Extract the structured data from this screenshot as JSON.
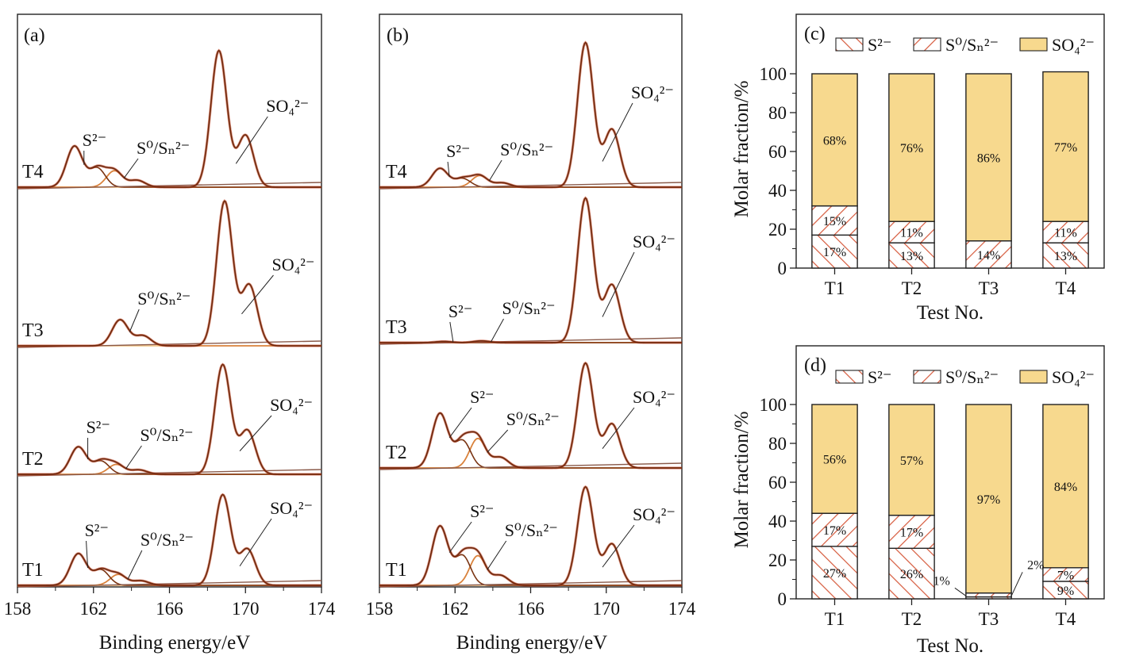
{
  "colors": {
    "envelope": "#6e2b10",
    "raw": "#c0391b",
    "sulfate_fit": "#f3c98c",
    "sulfide_fit": "#7a3412",
    "polysulfide_fit": "#d9823c",
    "baseline": "#8a5a4a",
    "sulfate_fill": "#f7d98e",
    "hatch_line": "#d65a3c",
    "axis": "#222222"
  },
  "chart_data": [
    {
      "id": "a",
      "type": "line",
      "panel_label": "(a)",
      "xlabel": "Binding energy/eV",
      "xlim": [
        158,
        174
      ],
      "x_reversed": false,
      "x_ticks": [
        "158",
        "162",
        "166",
        "170",
        "174"
      ],
      "peak_labels": {
        "sulfide": "S²⁻",
        "polysulfide": "S⁰/Sₙ²⁻",
        "sulfate": "SO₄²⁻"
      },
      "series": [
        {
          "name": "T4",
          "sulfide_peaks": [
            {
              "center": 161.0,
              "height": 0.3
            },
            {
              "center": 162.2,
              "height": 0.14
            }
          ],
          "polysulfide_peaks": [
            {
              "center": 163.1,
              "height": 0.12
            },
            {
              "center": 164.3,
              "height": 0.05
            }
          ],
          "sulfate_peaks": [
            {
              "center": 168.6,
              "height": 1.0
            },
            {
              "center": 170.0,
              "height": 0.38
            }
          ],
          "labels_shown": [
            "sulfide",
            "polysulfide",
            "sulfate"
          ]
        },
        {
          "name": "T3",
          "sulfide_peaks": [],
          "polysulfide_peaks": [
            {
              "center": 163.4,
              "height": 0.18
            },
            {
              "center": 164.6,
              "height": 0.07
            }
          ],
          "sulfate_peaks": [
            {
              "center": 168.9,
              "height": 1.0
            },
            {
              "center": 170.2,
              "height": 0.42
            }
          ],
          "labels_shown": [
            "polysulfide",
            "sulfate"
          ]
        },
        {
          "name": "T2",
          "sulfide_peaks": [
            {
              "center": 161.2,
              "height": 0.25
            },
            {
              "center": 162.4,
              "height": 0.12
            }
          ],
          "polysulfide_peaks": [
            {
              "center": 163.2,
              "height": 0.09
            },
            {
              "center": 164.4,
              "height": 0.04
            }
          ],
          "sulfate_peaks": [
            {
              "center": 168.8,
              "height": 1.0
            },
            {
              "center": 170.1,
              "height": 0.4
            }
          ],
          "labels_shown": [
            "sulfide",
            "polysulfide",
            "sulfate"
          ]
        },
        {
          "name": "T1",
          "sulfide_peaks": [
            {
              "center": 161.2,
              "height": 0.35
            },
            {
              "center": 162.4,
              "height": 0.17
            }
          ],
          "polysulfide_peaks": [
            {
              "center": 163.3,
              "height": 0.12
            },
            {
              "center": 164.5,
              "height": 0.05
            }
          ],
          "sulfate_peaks": [
            {
              "center": 168.8,
              "height": 1.0
            },
            {
              "center": 170.1,
              "height": 0.4
            }
          ],
          "labels_shown": [
            "sulfide",
            "polysulfide",
            "sulfate"
          ]
        }
      ]
    },
    {
      "id": "b",
      "type": "line",
      "panel_label": "(b)",
      "xlabel": "Binding energy/eV",
      "xlim": [
        158,
        174
      ],
      "x_reversed": false,
      "x_ticks": [
        "158",
        "162",
        "166",
        "170",
        "174"
      ],
      "peak_labels": {
        "sulfide": "S²⁻",
        "polysulfide": "S⁰/Sₙ²⁻",
        "sulfate": "SO₄²⁻"
      },
      "series": [
        {
          "name": "T4",
          "sulfide_peaks": [
            {
              "center": 161.2,
              "height": 0.13
            },
            {
              "center": 162.4,
              "height": 0.06
            }
          ],
          "polysulfide_peaks": [
            {
              "center": 163.3,
              "height": 0.08
            },
            {
              "center": 164.5,
              "height": 0.03
            }
          ],
          "sulfate_peaks": [
            {
              "center": 168.9,
              "height": 1.0
            },
            {
              "center": 170.3,
              "height": 0.4
            }
          ],
          "labels_shown": [
            "sulfide",
            "polysulfide",
            "sulfate"
          ]
        },
        {
          "name": "T3",
          "sulfide_peaks": [
            {
              "center": 161.4,
              "height": 0.008
            }
          ],
          "polysulfide_peaks": [
            {
              "center": 163.4,
              "height": 0.012
            }
          ],
          "sulfate_peaks": [
            {
              "center": 168.9,
              "height": 1.0
            },
            {
              "center": 170.3,
              "height": 0.4
            }
          ],
          "labels_shown": [
            "sulfide",
            "polysulfide",
            "sulfate"
          ]
        },
        {
          "name": "T2",
          "sulfide_peaks": [
            {
              "center": 161.2,
              "height": 0.52
            },
            {
              "center": 162.4,
              "height": 0.26
            }
          ],
          "polysulfide_peaks": [
            {
              "center": 163.2,
              "height": 0.28
            },
            {
              "center": 164.4,
              "height": 0.1
            }
          ],
          "sulfate_peaks": [
            {
              "center": 168.9,
              "height": 1.0
            },
            {
              "center": 170.3,
              "height": 0.42
            }
          ],
          "labels_shown": [
            "sulfide",
            "polysulfide",
            "sulfate"
          ]
        },
        {
          "name": "T1",
          "sulfide_peaks": [
            {
              "center": 161.2,
              "height": 0.6
            },
            {
              "center": 162.4,
              "height": 0.3
            }
          ],
          "polysulfide_peaks": [
            {
              "center": 163.2,
              "height": 0.3
            },
            {
              "center": 164.4,
              "height": 0.1
            }
          ],
          "sulfate_peaks": [
            {
              "center": 168.9,
              "height": 1.0
            },
            {
              "center": 170.3,
              "height": 0.42
            }
          ],
          "labels_shown": [
            "sulfide",
            "polysulfide",
            "sulfate"
          ]
        }
      ]
    },
    {
      "id": "c",
      "type": "bar",
      "stacked": true,
      "panel_label": "(c)",
      "xlabel": "Test No.",
      "ylabel": "Molar fraction/%",
      "ylim": [
        0,
        100
      ],
      "y_ticks": [
        0,
        20,
        40,
        60,
        80,
        100
      ],
      "categories": [
        "T1",
        "T2",
        "T3",
        "T4"
      ],
      "legend": {
        "position": "top",
        "entries": [
          "S²⁻",
          "S⁰/Sₙ²⁻",
          "SO₄²⁻"
        ]
      },
      "series": [
        {
          "name": "S²⁻",
          "values": [
            17,
            13,
            0,
            13
          ],
          "labels": [
            "17%",
            "13%",
            "",
            "13%"
          ]
        },
        {
          "name": "S⁰/Sₙ²⁻",
          "values": [
            15,
            11,
            14,
            11
          ],
          "labels": [
            "15%",
            "11%",
            "14%",
            "11%"
          ]
        },
        {
          "name": "SO₄²⁻",
          "values": [
            68,
            76,
            86,
            77
          ],
          "labels": [
            "68%",
            "76%",
            "86%",
            "77%"
          ]
        }
      ],
      "outside_labels": []
    },
    {
      "id": "d",
      "type": "bar",
      "stacked": true,
      "panel_label": "(d)",
      "xlabel": "Test No.",
      "ylabel": "Molar fraction/%",
      "ylim": [
        0,
        100
      ],
      "y_ticks": [
        0,
        20,
        40,
        60,
        80,
        100
      ],
      "categories": [
        "T1",
        "T2",
        "T3",
        "T4"
      ],
      "legend": {
        "position": "top",
        "entries": [
          "S²⁻",
          "S⁰/Sₙ²⁻",
          "SO₄²⁻"
        ]
      },
      "series": [
        {
          "name": "S²⁻",
          "values": [
            27,
            26,
            1,
            9
          ],
          "labels": [
            "27%",
            "26%",
            "",
            "9%"
          ]
        },
        {
          "name": "S⁰/Sₙ²⁻",
          "values": [
            17,
            17,
            2,
            7
          ],
          "labels": [
            "17%",
            "17%",
            "",
            "7%"
          ]
        },
        {
          "name": "SO₄²⁻",
          "values": [
            56,
            57,
            97,
            84
          ],
          "labels": [
            "56%",
            "57%",
            "97%",
            "84%"
          ]
        }
      ],
      "outside_labels": [
        {
          "category": "T3",
          "series": "S²⁻",
          "text": "1%",
          "side": "left"
        },
        {
          "category": "T3",
          "series": "S⁰/Sₙ²⁻",
          "text": "2%",
          "side": "right"
        }
      ]
    }
  ]
}
